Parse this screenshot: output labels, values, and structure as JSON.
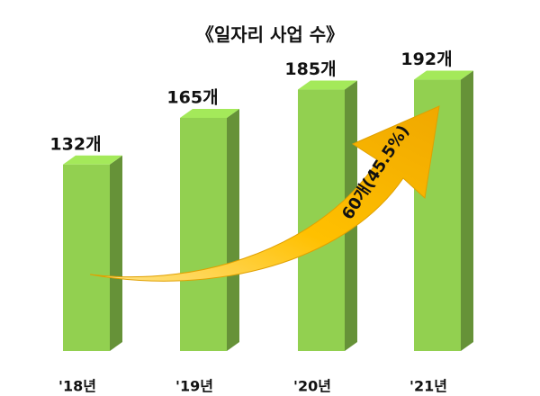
{
  "chart_data": {
    "type": "bar3d",
    "title": "《일자리 사업 수》",
    "categories": [
      "'18년",
      "'19년",
      "'20년",
      "'21년"
    ],
    "values": [
      132,
      165,
      185,
      192
    ],
    "value_labels": [
      "132개",
      "165개",
      "185개",
      "192개"
    ],
    "color": "#92d050",
    "annotation": "60개(45.5%)"
  }
}
